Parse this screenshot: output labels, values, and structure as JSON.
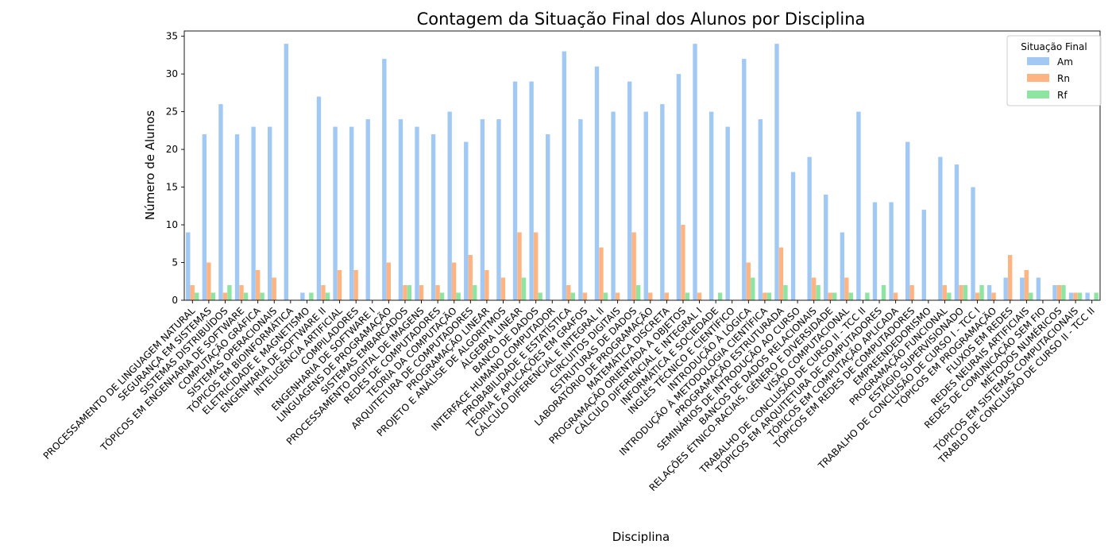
{
  "chart_data": {
    "type": "bar",
    "title": "Contagem da Situação Final dos Alunos por Disciplina",
    "xlabel": "Disciplina",
    "ylabel": "Número de Alunos",
    "ylim": [
      0,
      35.7
    ],
    "yticks": [
      0,
      5,
      10,
      15,
      20,
      25,
      30,
      35
    ],
    "legend": {
      "title": "Situação Final",
      "position": "top-right"
    },
    "categories": [
      "PROCESSAMENTO DE LINGUAGEM NATURAL",
      "SEGURANÇA EM SISTEMAS",
      "SISTEMAS DISTRIBUÍDOS",
      "TÓPICOS EM ENGENHARIA DE SOFTWARE",
      "COMPUTAÇÃO GRÁFICA",
      "SISTEMAS OPERACIONAIS",
      "TÓPICOS EM BIOINFORMÁTICA",
      "ELETRICIDADE E MAGNETISMO",
      "ENGENHARIA DE SOFTWARE II",
      "INTELIGÊNCIA ARTIFICIAL",
      "COMPILADORES",
      "ENGENHARIA DE SOFTWARE I",
      "LINGUAGENS DE PROGRAMAÇÃO",
      "SISTEMAS EMBARCADOS",
      "PROCESSAMENTO DIGITAL DE IMAGENS",
      "REDES DE COMPUTADORES",
      "TEORIA DA COMPUTAÇÃO",
      "ARQUITETURA DE COMPUTADORES",
      "PROGRAMAÇÃO LINEAR",
      "PROJETO E ANÁLISE DE ALGORITMOS",
      "ÁLGEBRA LINEAR",
      "BANCO DE DADOS",
      "INTERFACE HUMANO COMPUTADOR",
      "PROBABILIDADE E ESTATÍSTICA",
      "TEORIA E APLICAÇÕES EM GRAFOS",
      "CÁLCULO DIFERENCIAL E INTEGRAL II",
      "CIRCUITOS DIGITAIS",
      "ESTRUTURAS DE DADOS",
      "LABORATÓRIO DE PROGRAMAÇÃO",
      "MATEMÁTICA DISCRETA",
      "PROGRAMAÇÃO ORIENTADA A OBJETOS",
      "CÁLCULO DIFERENCIAL E INTEGRAL I",
      "INFORMÁTICA E SOCIEDADE",
      "INGLÊS TÉCNICO E CIENTÍFICO",
      "INTRODUÇÃO À LÓGICA",
      "INTRODUÇÃO À METODOLOGIA CIENTÍFICA",
      "PROGRAMAÇÃO ESTRUTURADA",
      "SEMINÁRIOS DE INTRODUÇÃO AO CURSO",
      "BANCOS DE DADOS RELACIONAIS",
      "RELAÇÕES ÉTNICO-RACIAIS, GÊNERO E DIVERSIDADE",
      "VISÃO COMPUTACIONAL",
      "TRABALHO DE CONCLUSÃO DE CURSO II - TCC II",
      "TÓPICOS EM ARQUITETURA DE COMPUTADORES",
      "TÓPICOS EM COMPUTAÇÃO APLICADA",
      "TÓPICOS EM REDES DE COMPUTADORES",
      "EMPREENDEDORISMO",
      "PROGRAMAÇÃO FUNCIONAL",
      "ESTÁGIO SUPERVISIONADO",
      "TRABALHO DE CONCLUSÃO DE CURSO I - TCC I",
      "TÓPICOS EM PROGRAMAÇÃO",
      "FLUXOS EM REDES",
      "REDES NEURAIS ARTIFICIAIS",
      "REDES DE COMUNICAÇÃO SEM FIO",
      "MÉTODOS NUMÉRICOS",
      "TÓPICOS EM SISTEMAS COMPUTACIONAIS",
      "TRABLO DE CONCLUSÃO DE CURSO II - TCC II"
    ],
    "series": [
      {
        "name": "Am",
        "color": "#a1c9f4",
        "values": [
          9,
          22,
          26,
          22,
          23,
          23,
          34,
          1,
          27,
          23,
          23,
          24,
          32,
          24,
          23,
          22,
          25,
          21,
          24,
          24,
          29,
          29,
          22,
          33,
          24,
          31,
          25,
          29,
          25,
          26,
          30,
          34,
          25,
          23,
          32,
          24,
          34,
          17,
          19,
          14,
          9,
          25,
          13,
          13,
          21,
          12,
          19,
          18,
          15,
          2,
          3,
          3,
          3,
          2,
          1,
          1
        ]
      },
      {
        "name": "Rn",
        "color": "#ffb482",
        "values": [
          2,
          5,
          1,
          2,
          4,
          3,
          0,
          0,
          2,
          4,
          4,
          0,
          5,
          2,
          2,
          2,
          5,
          6,
          4,
          3,
          9,
          9,
          0,
          2,
          1,
          7,
          1,
          9,
          1,
          1,
          10,
          1,
          0,
          0,
          5,
          1,
          7,
          0,
          3,
          1,
          3,
          0,
          0,
          1,
          2,
          0,
          2,
          2,
          1,
          1,
          6,
          4,
          0,
          2,
          1,
          0
        ]
      },
      {
        "name": "Rf",
        "color": "#8de5a1",
        "values": [
          1,
          1,
          2,
          1,
          1,
          0,
          0,
          1,
          1,
          0,
          0,
          0,
          0,
          2,
          0,
          1,
          1,
          2,
          0,
          0,
          3,
          1,
          0,
          1,
          0,
          1,
          0,
          2,
          0,
          0,
          1,
          0,
          1,
          0,
          3,
          1,
          2,
          0,
          2,
          1,
          1,
          1,
          2,
          0,
          0,
          0,
          1,
          2,
          2,
          0,
          0,
          1,
          0,
          2,
          1,
          1
        ]
      }
    ]
  }
}
